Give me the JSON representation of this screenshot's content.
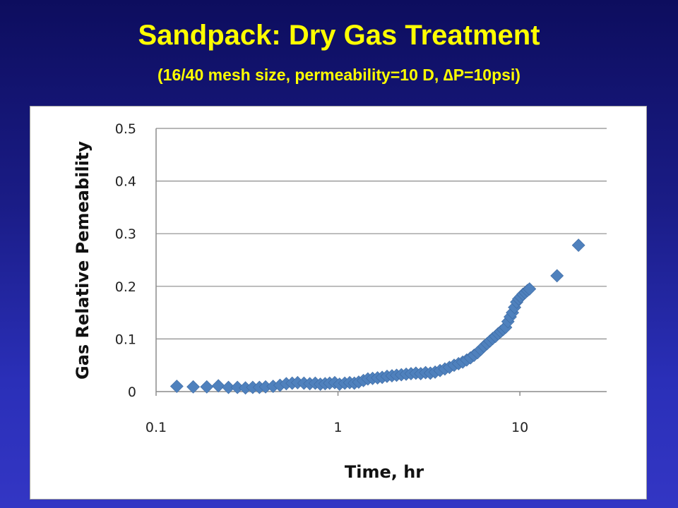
{
  "slide": {
    "title": "Sandpack: Dry Gas Treatment",
    "subtitle": "(16/40 mesh size, permeability=10 D, ∆P=10psi)"
  },
  "chart_data": {
    "type": "scatter",
    "xlabel": "Time, hr",
    "ylabel": "Gas Relative Pemeability",
    "xscale": "log",
    "xlim": [
      0.1,
      30
    ],
    "ylim": [
      0,
      0.5
    ],
    "xticks": [
      0.1,
      1,
      10
    ],
    "xtick_labels": [
      "0.1",
      "1",
      "10"
    ],
    "yticks": [
      0,
      0.1,
      0.2,
      0.3,
      0.4,
      0.5
    ],
    "ytick_labels": [
      "0",
      "0.1",
      "0.2",
      "0.3",
      "0.4",
      "0.5"
    ],
    "grid": "horizontal",
    "legend": "none",
    "marker_color": "#4f81bd",
    "marker": "diamond",
    "series": [
      {
        "x": [
          0.13,
          0.16,
          0.19,
          0.22,
          0.25,
          0.28,
          0.31,
          0.34,
          0.37,
          0.4,
          0.44,
          0.48,
          0.52,
          0.56,
          0.6,
          0.65,
          0.7,
          0.75,
          0.8,
          0.85,
          0.9,
          0.96,
          1.02,
          1.09,
          1.16,
          1.23,
          1.3,
          1.38,
          1.46,
          1.55,
          1.65,
          1.75,
          1.86,
          1.98,
          2.1,
          2.23,
          2.37,
          2.52,
          2.68,
          2.85,
          3.03,
          3.22,
          3.42,
          3.64,
          3.87,
          4.1,
          4.35,
          4.6,
          4.85,
          5.1,
          5.35,
          5.6,
          5.85,
          6.1,
          6.35,
          6.6,
          6.85,
          7.1,
          7.35,
          7.6,
          7.85,
          8.1,
          8.35,
          8.6,
          8.85,
          9.1,
          9.35,
          9.6,
          9.85,
          10.1,
          10.4,
          10.7,
          11.0,
          11.3,
          16,
          21
        ],
        "y": [
          0.01,
          0.009,
          0.009,
          0.011,
          0.008,
          0.008,
          0.007,
          0.008,
          0.008,
          0.009,
          0.01,
          0.012,
          0.015,
          0.016,
          0.017,
          0.016,
          0.015,
          0.016,
          0.014,
          0.015,
          0.016,
          0.017,
          0.014,
          0.016,
          0.017,
          0.016,
          0.018,
          0.021,
          0.024,
          0.025,
          0.026,
          0.027,
          0.029,
          0.03,
          0.031,
          0.032,
          0.033,
          0.034,
          0.035,
          0.034,
          0.036,
          0.035,
          0.037,
          0.04,
          0.043,
          0.046,
          0.05,
          0.053,
          0.056,
          0.06,
          0.064,
          0.069,
          0.074,
          0.08,
          0.086,
          0.091,
          0.096,
          0.101,
          0.105,
          0.11,
          0.114,
          0.118,
          0.122,
          0.133,
          0.142,
          0.15,
          0.16,
          0.17,
          0.176,
          0.18,
          0.185,
          0.188,
          0.192,
          0.195,
          0.22,
          0.278
        ]
      }
    ]
  }
}
